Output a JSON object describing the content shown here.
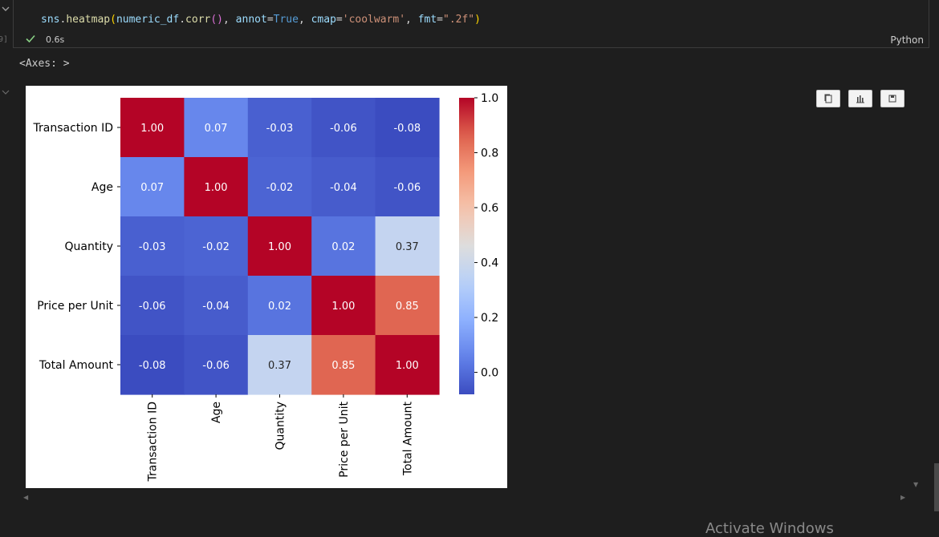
{
  "cell": {
    "code_tokens": [
      {
        "t": "sns",
        "c": "tk-var"
      },
      {
        "t": ".",
        "c": "tk-op"
      },
      {
        "t": "heatmap",
        "c": "tk-fn"
      },
      {
        "t": "(",
        "c": "tk-p"
      },
      {
        "t": "numeric_df",
        "c": "tk-var"
      },
      {
        "t": ".",
        "c": "tk-op"
      },
      {
        "t": "corr",
        "c": "tk-fn"
      },
      {
        "t": "()",
        "c": "tk-p2"
      },
      {
        "t": ", ",
        "c": "tk-op"
      },
      {
        "t": "annot",
        "c": "tk-param"
      },
      {
        "t": "=",
        "c": "tk-op"
      },
      {
        "t": "True",
        "c": "tk-kw"
      },
      {
        "t": ", ",
        "c": "tk-op"
      },
      {
        "t": "cmap",
        "c": "tk-param"
      },
      {
        "t": "=",
        "c": "tk-op"
      },
      {
        "t": "'coolwarm'",
        "c": "tk-str"
      },
      {
        "t": ", ",
        "c": "tk-op"
      },
      {
        "t": "fmt",
        "c": "tk-param"
      },
      {
        "t": "=",
        "c": "tk-op"
      },
      {
        "t": "\".2f\"",
        "c": "tk-str"
      },
      {
        "t": ")",
        "c": "tk-p"
      }
    ],
    "exec_count": "9]",
    "status_time": "0.6s",
    "language": "Python",
    "status_color": "#89d185"
  },
  "output": {
    "text": "<Axes: >"
  },
  "toolbar": {
    "icons": [
      "copy-icon",
      "chart-icon",
      "save-icon"
    ]
  },
  "watermark": "Activate Windows",
  "chart_data": {
    "type": "heatmap",
    "colormap": "coolwarm",
    "labels": [
      "Transaction ID",
      "Age",
      "Quantity",
      "Price per Unit",
      "Total Amount"
    ],
    "matrix": [
      [
        1.0,
        0.07,
        -0.03,
        -0.06,
        -0.08
      ],
      [
        0.07,
        1.0,
        -0.02,
        -0.04,
        -0.06
      ],
      [
        -0.03,
        -0.02,
        1.0,
        0.02,
        0.37
      ],
      [
        -0.06,
        -0.04,
        0.02,
        1.0,
        0.85
      ],
      [
        -0.08,
        -0.06,
        0.37,
        0.85,
        1.0
      ]
    ],
    "annot_format": ".2f",
    "colorbar": {
      "range": [
        -0.08,
        1.0
      ],
      "ticks": [
        "1.0",
        "0.8",
        "0.6",
        "0.4",
        "0.2",
        "0.0"
      ],
      "tick_values": [
        1.0,
        0.8,
        0.6,
        0.4,
        0.2,
        0.0
      ]
    }
  }
}
